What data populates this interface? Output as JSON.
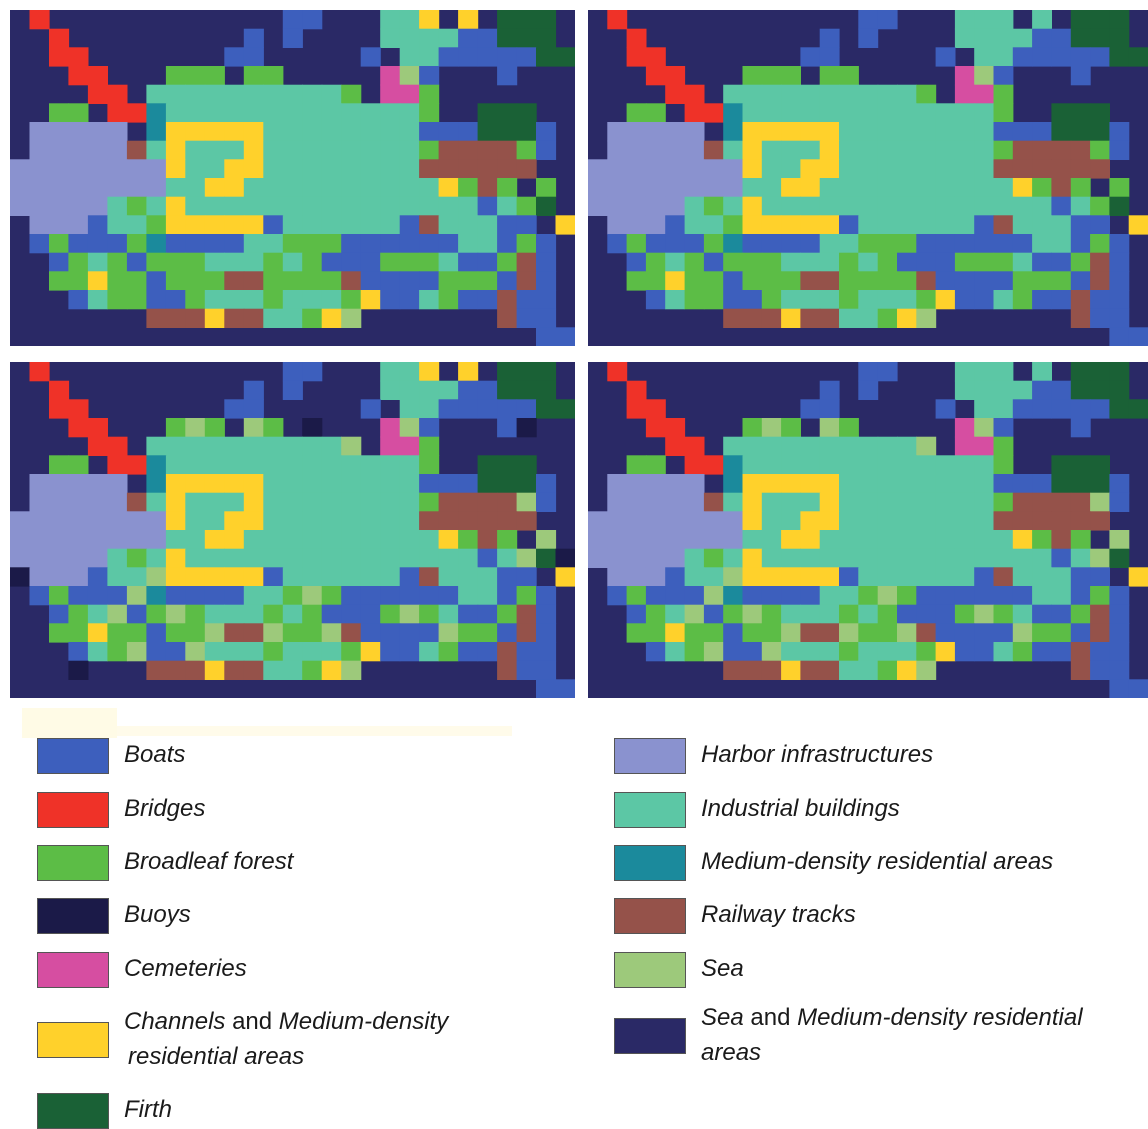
{
  "legend": {
    "left": [
      {
        "id": "boats",
        "label": "Boats",
        "color": "#3d5fbd"
      },
      {
        "id": "bridges",
        "label": "Bridges",
        "color": "#ef3228"
      },
      {
        "id": "broadleaf",
        "label": "Broadleaf forest",
        "color": "#5cbd46"
      },
      {
        "id": "buoys",
        "label": "Buoys",
        "color": "#1b1a48"
      },
      {
        "id": "cemeteries",
        "label": "Cemeteries",
        "color": "#d64ea1"
      },
      {
        "id": "channels",
        "label": "Channels",
        "label_mid": " and ",
        "label_rest": "Medium-density",
        "label_line2": "residential areas",
        "color": "#ffd12b"
      },
      {
        "id": "firth",
        "label": "Firth",
        "color": "#1a6136"
      }
    ],
    "right": [
      {
        "id": "harbor",
        "label": "Harbor infrastructures",
        "color": "#8a92cf"
      },
      {
        "id": "industrial",
        "label": "Industrial buildings",
        "color": "#5cc7a5"
      },
      {
        "id": "mdr",
        "label": "Medium-density residential areas",
        "color": "#1b8a9c"
      },
      {
        "id": "rail",
        "label": "Railway tracks",
        "color": "#95524a"
      },
      {
        "id": "sea",
        "label": "Sea",
        "color": "#9dc97b"
      },
      {
        "id": "sea_mdr",
        "label": "Sea",
        "label_mid": " and ",
        "label_rest": "Medium-density residential",
        "label_line2": "areas",
        "color": "#2a2966"
      }
    ]
  },
  "map_colors": {
    "bg": "#2a2966",
    "boats": "#3d5fbd",
    "bridges": "#ef3228",
    "broadleaf": "#5cbd46",
    "buoys": "#1b1a48",
    "cemeteries": "#d64ea1",
    "channels": "#ffd12b",
    "firth": "#1a6136",
    "harbor": "#8a92cf",
    "industrial": "#5cc7a5",
    "mdr": "#1b8a9c",
    "rail": "#95524a",
    "sea": "#9dc97b"
  }
}
